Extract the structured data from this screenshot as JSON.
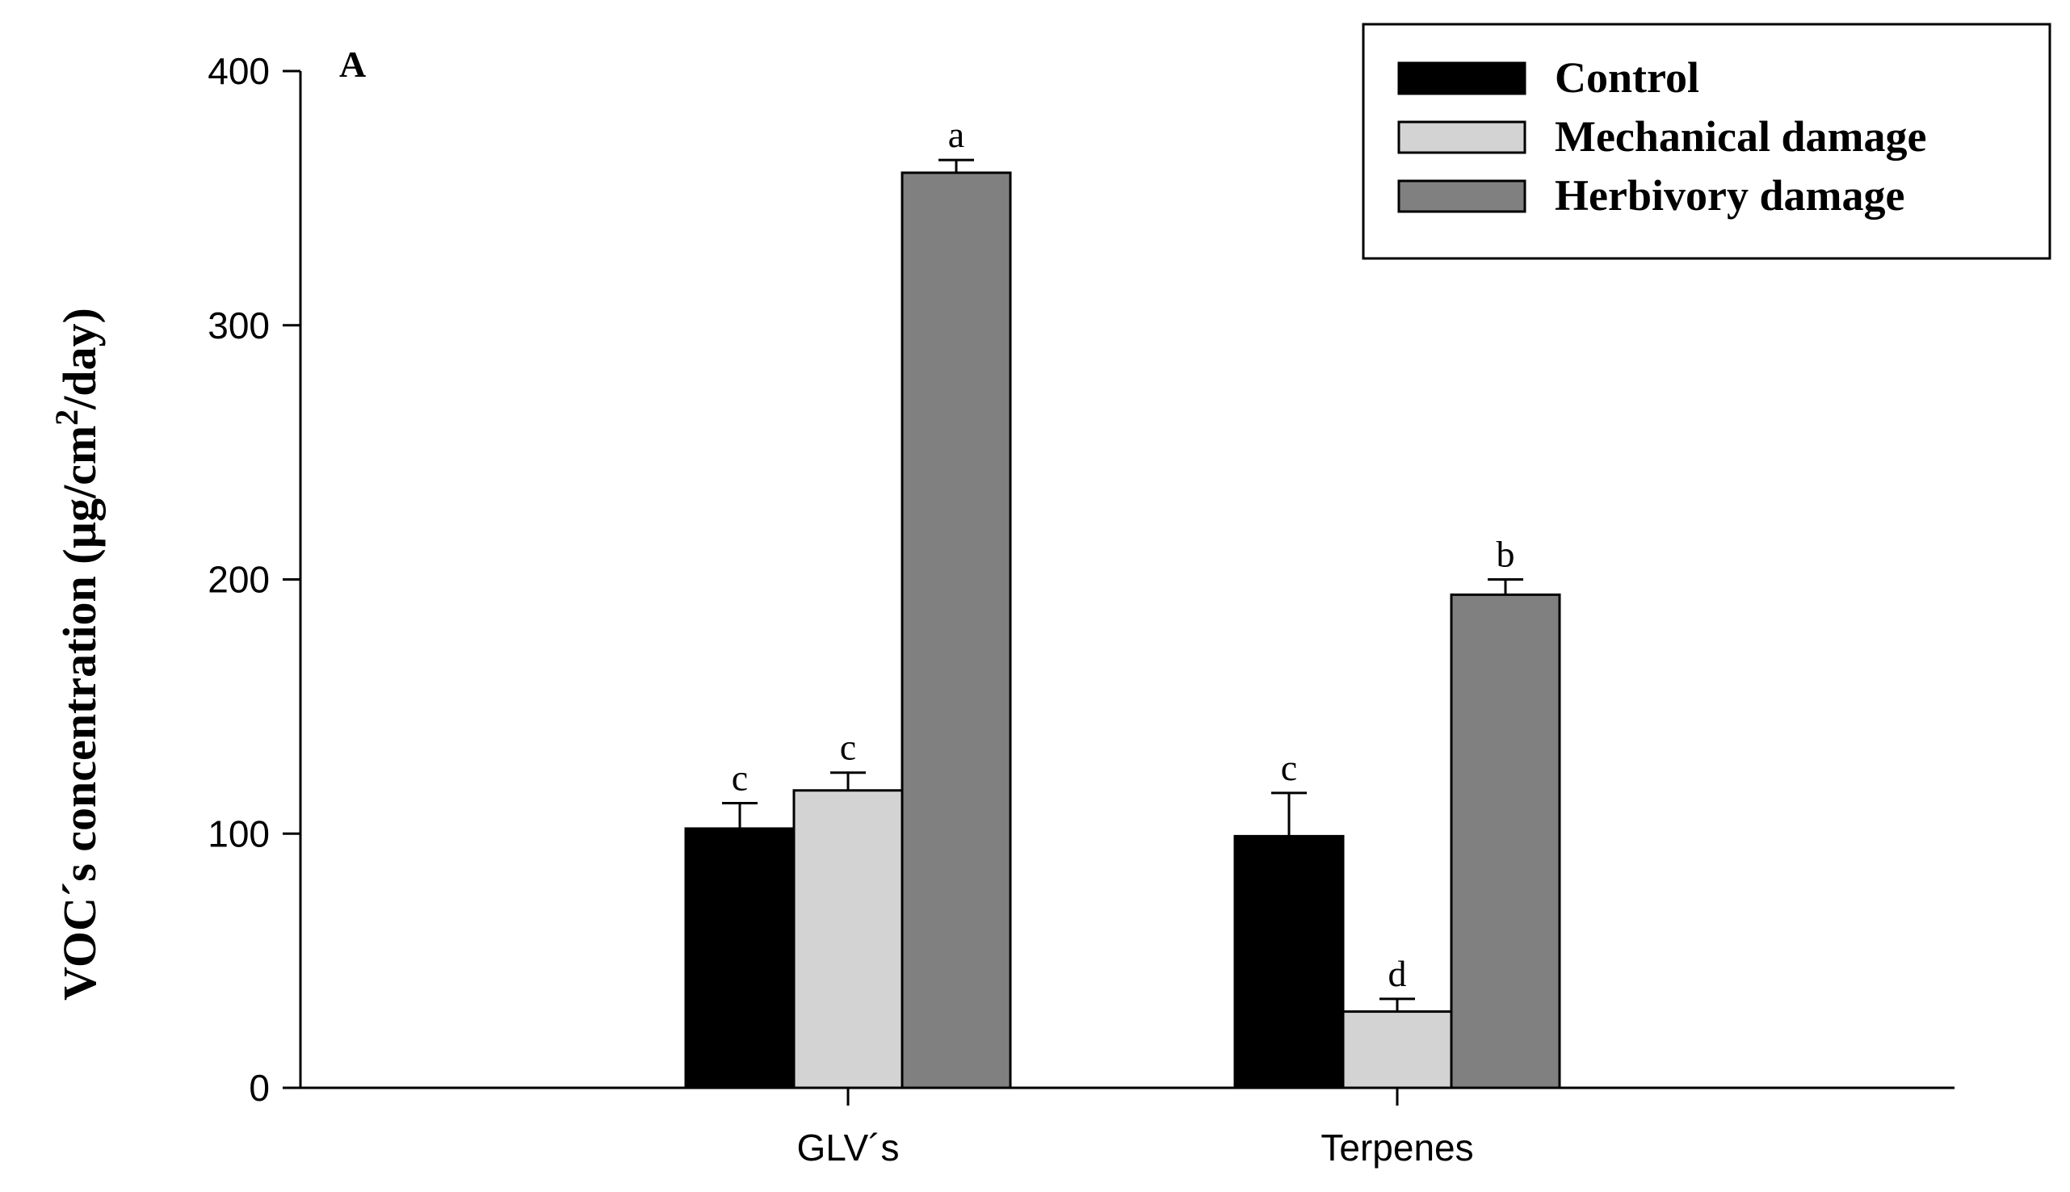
{
  "chart_data": {
    "type": "bar",
    "panel_label": "A",
    "categories": [
      "GLV´s",
      "Terpenes"
    ],
    "series": [
      {
        "name": "Control",
        "color": "#000000",
        "values": [
          102,
          99
        ],
        "errors": [
          10,
          17
        ],
        "labels": [
          "c",
          "c"
        ]
      },
      {
        "name": "Mechanical damage",
        "color": "#d3d3d3",
        "values": [
          117,
          30
        ],
        "errors": [
          7,
          5
        ],
        "labels": [
          "c",
          "d"
        ]
      },
      {
        "name": "Herbivory damage",
        "color": "#808080",
        "values": [
          360,
          194
        ],
        "errors": [
          5,
          6
        ],
        "labels": [
          "a",
          "b"
        ]
      }
    ],
    "ylabel": {
      "main": "VOC´s concentration (µg/cm",
      "sup": "2",
      "tail": "/day)"
    },
    "xlabel": "",
    "ylim": [
      0,
      400
    ],
    "yticks": [
      0,
      100,
      200,
      300,
      400
    ],
    "grid": false,
    "legend": "top-right"
  }
}
